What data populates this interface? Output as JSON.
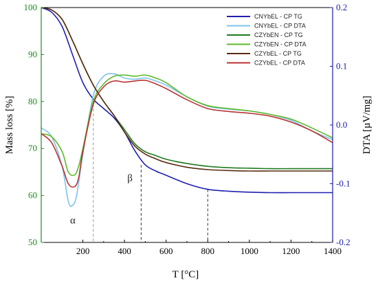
{
  "chart_data": {
    "type": "line",
    "title": "",
    "xlabel": "T [°C]",
    "ylabel_left": "Mass loss [%]",
    "ylabel_right": "DTA [µV/mg]",
    "xlim": [
      0,
      1400
    ],
    "ylim_left": [
      50,
      100
    ],
    "ylim_right": [
      -0.2,
      0.2
    ],
    "xticks": [
      "200",
      "400",
      "600",
      "800",
      "1000",
      "1200",
      "1400"
    ],
    "yticks_left": [
      "50",
      "60",
      "70",
      "80",
      "90",
      "100"
    ],
    "yticks_right": [
      "-0.2",
      "-0.1",
      "0.0",
      "0.1",
      "0.2"
    ],
    "left_axis_color": "#1a8a1a",
    "right_axis_color": "#1a1aaa",
    "grid": false,
    "legend_position": "top-right",
    "annotations": [
      {
        "text": "α",
        "x": 155,
        "y": 54
      },
      {
        "text": "β",
        "x": 430,
        "y": 63
      }
    ],
    "reference_lines": [
      {
        "x": 250,
        "y_top": 80.5,
        "color": "#999999",
        "style": "dashed"
      },
      {
        "x": 480,
        "y_top": 66.5,
        "color": "#333333",
        "style": "dashed"
      },
      {
        "x": 800,
        "y_top": 61.3,
        "color": "#333333",
        "style": "dashed"
      }
    ],
    "series": [
      {
        "name": "CNYbEL - CP TG",
        "axis": "left",
        "color": "#1f1fb0",
        "x": [
          0,
          50,
          100,
          150,
          200,
          250,
          300,
          350,
          400,
          450,
          500,
          550,
          600,
          700,
          800,
          900,
          1000,
          1100,
          1200,
          1300,
          1400
        ],
        "y": [
          100,
          99,
          96,
          90,
          84,
          80.5,
          78.5,
          76.5,
          73.5,
          69.5,
          66.5,
          65.2,
          64.3,
          62.5,
          61.3,
          60.9,
          60.7,
          60.6,
          60.6,
          60.6,
          60.6
        ]
      },
      {
        "name": "CNYbEL - CP DTA",
        "axis": "right",
        "color": "#7cc3ea",
        "x": [
          0,
          50,
          100,
          130,
          150,
          170,
          200,
          250,
          300,
          350,
          400,
          450,
          500,
          550,
          600,
          700,
          800,
          900,
          1000,
          1100,
          1200,
          1300,
          1400
        ],
        "y": [
          -0.005,
          -0.02,
          -0.07,
          -0.13,
          -0.137,
          -0.12,
          -0.05,
          0.05,
          0.083,
          0.087,
          0.08,
          0.078,
          0.08,
          0.075,
          0.068,
          0.048,
          0.032,
          0.027,
          0.024,
          0.018,
          0.008,
          -0.01,
          -0.025
        ]
      },
      {
        "name": "CZYbEN - CP TG",
        "axis": "left",
        "color": "#1e7a1e",
        "x": [
          0,
          50,
          100,
          150,
          200,
          250,
          300,
          350,
          400,
          450,
          500,
          550,
          600,
          700,
          800,
          900,
          1000,
          1100,
          1200,
          1300,
          1400
        ],
        "y": [
          100,
          99.5,
          97.5,
          93,
          88,
          83.5,
          80,
          77,
          74,
          71,
          69.3,
          68.5,
          67.7,
          66.8,
          66.2,
          65.9,
          65.8,
          65.7,
          65.7,
          65.7,
          65.7
        ]
      },
      {
        "name": "CZYbEN - CP DTA",
        "axis": "right",
        "color": "#5fb82a",
        "x": [
          0,
          50,
          100,
          130,
          160,
          180,
          200,
          250,
          300,
          350,
          400,
          450,
          500,
          550,
          600,
          700,
          800,
          900,
          1000,
          1100,
          1200,
          1300,
          1400
        ],
        "y": [
          -0.015,
          -0.02,
          -0.045,
          -0.08,
          -0.085,
          -0.07,
          -0.04,
          0.04,
          0.07,
          0.083,
          0.085,
          0.083,
          0.085,
          0.08,
          0.072,
          0.048,
          0.033,
          0.028,
          0.024,
          0.018,
          0.01,
          -0.005,
          -0.022
        ]
      },
      {
        "name": "CZYbEL - CP TG",
        "axis": "left",
        "color": "#5a2a10",
        "x": [
          0,
          50,
          100,
          150,
          200,
          250,
          300,
          350,
          400,
          450,
          500,
          550,
          600,
          700,
          800,
          900,
          1000,
          1100,
          1200,
          1300,
          1400
        ],
        "y": [
          100,
          99.5,
          97.5,
          93,
          88,
          83.5,
          80,
          77,
          73.5,
          70.5,
          68.8,
          67.8,
          67,
          66,
          65.5,
          65.3,
          65.2,
          65.2,
          65.2,
          65.2,
          65.2
        ]
      },
      {
        "name": "CZYbEL - CP DTA",
        "axis": "right",
        "color": "#b83232",
        "x": [
          0,
          50,
          100,
          130,
          160,
          180,
          200,
          250,
          300,
          350,
          400,
          450,
          500,
          550,
          600,
          700,
          800,
          900,
          1000,
          1100,
          1200,
          1300,
          1400
        ],
        "y": [
          -0.015,
          -0.03,
          -0.07,
          -0.1,
          -0.105,
          -0.09,
          -0.045,
          0.035,
          0.065,
          0.075,
          0.073,
          0.075,
          0.076,
          0.07,
          0.062,
          0.043,
          0.028,
          0.023,
          0.02,
          0.015,
          0.005,
          -0.01,
          -0.03
        ]
      }
    ]
  }
}
